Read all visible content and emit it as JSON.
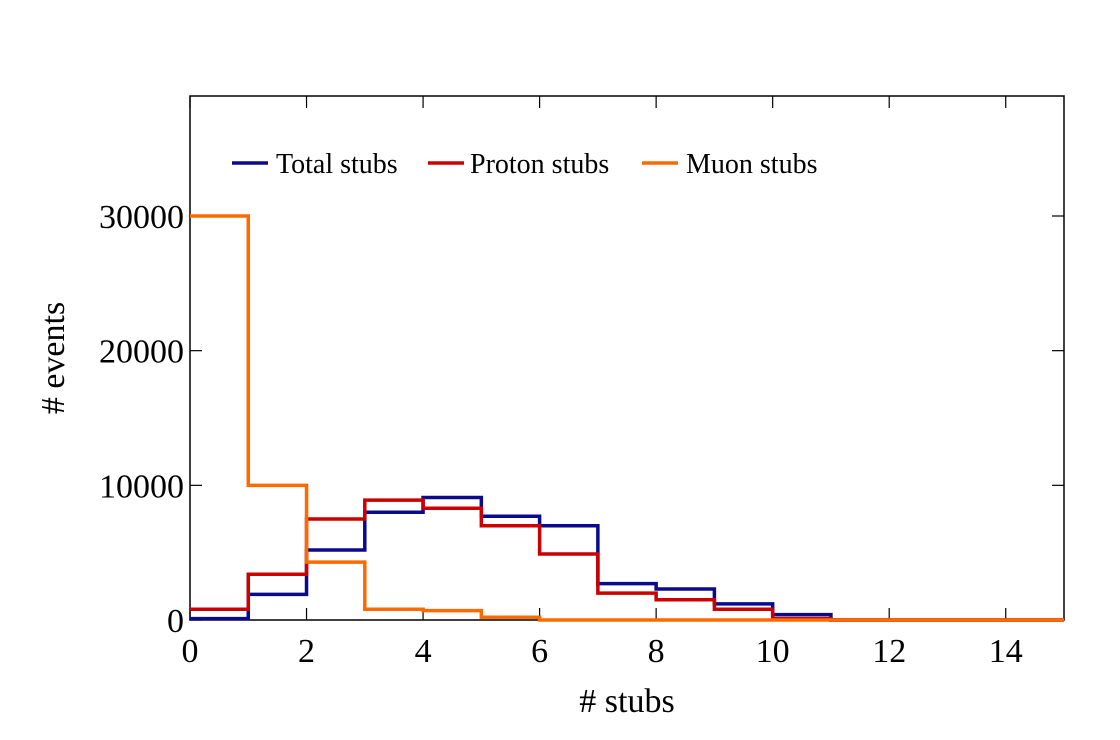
{
  "chart_data": {
    "type": "line",
    "subtype": "step-histogram",
    "title": "",
    "xlabel": "# stubs",
    "ylabel": "# events",
    "xlim": [
      0,
      15
    ],
    "ylim": [
      0,
      30000
    ],
    "xticks": [
      0,
      2,
      4,
      6,
      8,
      10,
      12,
      14
    ],
    "yticks": [
      0,
      10000,
      20000,
      30000
    ],
    "grid": false,
    "legend_position": "top-left",
    "bin_edges": [
      0,
      1,
      2,
      3,
      4,
      5,
      6,
      7,
      8,
      9,
      10,
      11,
      12,
      13,
      14,
      15
    ],
    "series": [
      {
        "name": "Total stubs",
        "color": "#0a0a8c",
        "values": [
          100,
          1900,
          5200,
          8000,
          9100,
          7700,
          7000,
          2700,
          2300,
          1200,
          400,
          0,
          0,
          0,
          0
        ]
      },
      {
        "name": "Proton stubs",
        "color": "#cc0000",
        "values": [
          800,
          3400,
          7500,
          8900,
          8300,
          7000,
          4900,
          2000,
          1500,
          800,
          100,
          0,
          0,
          0,
          0
        ]
      },
      {
        "name": "Muon stubs",
        "color": "#ff6a00",
        "values": [
          30000,
          10000,
          4300,
          800,
          700,
          200,
          0,
          0,
          0,
          0,
          0,
          0,
          0,
          0,
          0
        ]
      }
    ]
  }
}
